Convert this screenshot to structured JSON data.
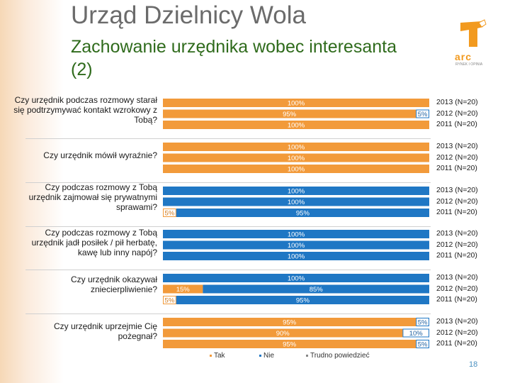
{
  "header": {
    "title": "Urząd Dzielnicy Wola",
    "subtitle": "Zachowanie urzędnika wobec interesanta (2)"
  },
  "logo": {
    "text": "arc",
    "tagline": "RYNEK I OPINIA",
    "color": "#f29a1f"
  },
  "page_number": "18",
  "colors": {
    "tak": "#f29a3a",
    "nie": "#1f77c4",
    "trudno": "#ffffff"
  },
  "chart_data": {
    "type": "bar",
    "orientation": "horizontal",
    "stacked": true,
    "grid": false,
    "legend_position": "bottom",
    "legend": [
      "Tak",
      "Nie",
      "Trudno powiedzieć"
    ],
    "groups": [
      {
        "question": "Czy urzędnik podczas rozmowy starał się podtrzymywać kontakt wzrokowy z Tobą?",
        "rows": [
          {
            "year": "2013 (N=20)",
            "tak": 100,
            "nie": 0,
            "trudno": 0,
            "labels": [
              "100%"
            ]
          },
          {
            "year": "2012 (N=20)",
            "tak": 95,
            "nie": 5,
            "trudno": 0,
            "labels": [
              "95%",
              "5%"
            ]
          },
          {
            "year": "2011 (N=20)",
            "tak": 100,
            "nie": 0,
            "trudno": 0,
            "labels": [
              "100%"
            ]
          }
        ]
      },
      {
        "question": "Czy urzędnik mówił wyraźnie?",
        "rows": [
          {
            "year": "2013 (N=20)",
            "tak": 100,
            "nie": 0,
            "trudno": 0,
            "labels": [
              "100%"
            ]
          },
          {
            "year": "2012 (N=20)",
            "tak": 100,
            "nie": 0,
            "trudno": 0,
            "labels": [
              "100%"
            ]
          },
          {
            "year": "2011 (N=20)",
            "tak": 100,
            "nie": 0,
            "trudno": 0,
            "labels": [
              "100%"
            ]
          }
        ]
      },
      {
        "question": "Czy podczas rozmowy z Tobą urzędnik zajmował się prywatnymi sprawami?",
        "rows": [
          {
            "year": "2013 (N=20)",
            "tak": 0,
            "nie": 100,
            "trudno": 0,
            "labels": [
              "100%"
            ]
          },
          {
            "year": "2012 (N=20)",
            "tak": 0,
            "nie": 100,
            "trudno": 0,
            "labels": [
              "100%"
            ]
          },
          {
            "year": "2011 (N=20)",
            "tak": 5,
            "nie": 95,
            "trudno": 0,
            "labels": [
              "5%",
              "95%"
            ]
          }
        ]
      },
      {
        "question": "Czy podczas rozmowy z Tobą urzędnik jadł posiłek / pił herbatę, kawę lub inny napój?",
        "rows": [
          {
            "year": "2013 (N=20)",
            "tak": 0,
            "nie": 100,
            "trudno": 0,
            "labels": [
              "100%"
            ]
          },
          {
            "year": "2012 (N=20)",
            "tak": 0,
            "nie": 100,
            "trudno": 0,
            "labels": [
              "100%"
            ]
          },
          {
            "year": "2011 (N=20)",
            "tak": 0,
            "nie": 100,
            "trudno": 0,
            "labels": [
              "100%"
            ]
          }
        ]
      },
      {
        "question": "Czy urzędnik okazywał zniecierpliwienie?",
        "rows": [
          {
            "year": "2013 (N=20)",
            "tak": 0,
            "nie": 100,
            "trudno": 0,
            "labels": [
              "100%"
            ]
          },
          {
            "year": "2012 (N=20)",
            "tak": 15,
            "nie": 85,
            "trudno": 0,
            "labels": [
              "15%",
              "85%"
            ]
          },
          {
            "year": "2011 (N=20)",
            "tak": 5,
            "nie": 95,
            "trudno": 0,
            "labels": [
              "5%",
              "95%"
            ]
          }
        ]
      },
      {
        "question": "Czy urzędnik uprzejmie Cię pożegnał?",
        "rows": [
          {
            "year": "2013 (N=20)",
            "tak": 95,
            "nie": 5,
            "trudno": 0,
            "labels": [
              "95%",
              "5%"
            ]
          },
          {
            "year": "2012 (N=20)",
            "tak": 90,
            "nie": 10,
            "trudno": 0,
            "labels": [
              "90%",
              "10%"
            ]
          },
          {
            "year": "2011 (N=20)",
            "tak": 95,
            "nie": 5,
            "trudno": 0,
            "labels": [
              "95%",
              "5%"
            ]
          }
        ]
      }
    ]
  }
}
